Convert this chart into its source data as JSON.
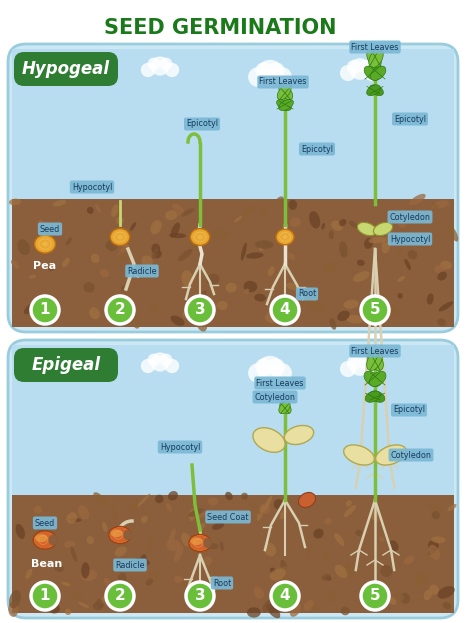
{
  "title": "SEED GERMINATION",
  "title_color": "#1a7a1a",
  "title_fontsize": 15,
  "bg_color": "#ffffff",
  "panel_bg": "#cce8f5",
  "soil_color": "#8B5E3C",
  "sky_color": "#b8ddf0",
  "hypogeal_label": "Hypogeal",
  "epigeal_label": "Epigeal",
  "label_bg": "#2e7d32",
  "label_text": "#ffffff",
  "stage_numbers": [
    "1",
    "2",
    "3",
    "4",
    "5"
  ],
  "stage_circle_color": "#6abf3a",
  "stage_text_color": "#ffffff",
  "ann_bg": "#7ab8d4",
  "ann_text": "#1a3a5c",
  "pea_color": "#e8a830",
  "pea_edge": "#c07010",
  "bean_color": "#d4622a",
  "bean_color2": "#e8a040",
  "bean_edge": "#a04010",
  "stem_color": "#7dbf3a",
  "root_color": "#d8d0b0",
  "leaf_color": "#5aaa28",
  "leaf_dark": "#2d7a10",
  "cotyledon_color": "#d8c870",
  "cotyledon_edge": "#a8a040",
  "soil_pebble_colors": [
    "#7a5230",
    "#6B4226",
    "#9a6840",
    "#a07040",
    "#8a6035"
  ],
  "cloud_color": "#ffffff",
  "panel_edge": "#99ccdd"
}
